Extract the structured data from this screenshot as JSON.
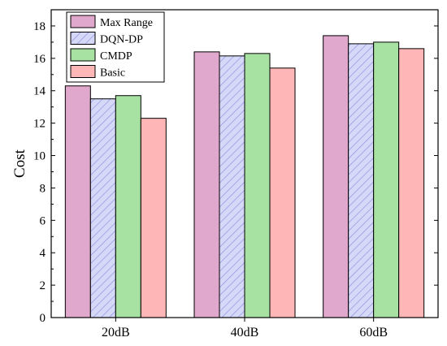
{
  "chart_data": {
    "type": "bar",
    "title": "",
    "xlabel": "",
    "ylabel": "Cost",
    "ylim": [
      0,
      19
    ],
    "yticks": [
      0,
      2,
      4,
      6,
      8,
      10,
      12,
      14,
      16,
      18
    ],
    "grid": false,
    "legend_position": "top-left",
    "categories": [
      "20dB",
      "40dB",
      "60dB"
    ],
    "series": [
      {
        "name": "Max Range",
        "values": [
          14.3,
          16.4,
          17.4
        ],
        "color": "#e0a8cc",
        "pattern": "solid"
      },
      {
        "name": "DQN-DP",
        "values": [
          13.5,
          16.15,
          16.9
        ],
        "color": "#d6d8f7",
        "pattern": "hatch",
        "hatch_color": "#8c90e0"
      },
      {
        "name": "CMDP",
        "values": [
          13.7,
          16.3,
          17.0
        ],
        "color": "#a8e2a2",
        "pattern": "solid"
      },
      {
        "name": "Basic",
        "values": [
          12.3,
          15.4,
          16.6
        ],
        "color": "#ffb6b6",
        "pattern": "solid"
      }
    ]
  }
}
